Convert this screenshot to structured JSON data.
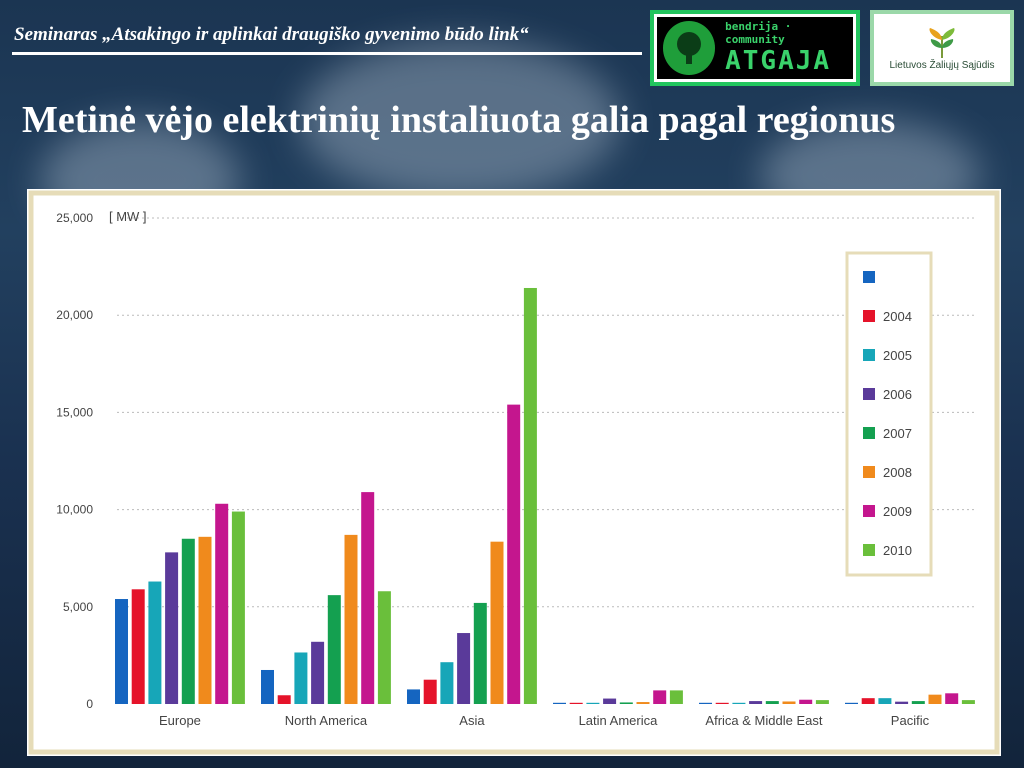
{
  "header": {
    "seminar_text": "Seminaras „Atsakingo ir aplinkai draugiško gyvenimo būdo link“"
  },
  "logos": {
    "atgaja_small": "bendrija · community",
    "atgaja_big": "ATGAJA",
    "lzs_text": "Lietuvos Žaliųjų Sąjūdis"
  },
  "slide": {
    "title": "Metinė vėjo elektrinių instaliuota galia pagal regionus"
  },
  "colors": {
    "frame": "#e6dcb8",
    "grid": "#bbbbbb",
    "axis_text": "#444444"
  },
  "chart_data": {
    "type": "bar",
    "unit_label": "[ MW ]",
    "categories": [
      "Europe",
      "North America",
      "Asia",
      "Latin America",
      "Africa & Middle East",
      "Pacific"
    ],
    "ylim": [
      0,
      25000
    ],
    "yticks": [
      "0",
      "5,000",
      "10,000",
      "15,000",
      "20,000",
      "25,000"
    ],
    "ytick_values": [
      0,
      5000,
      10000,
      15000,
      20000,
      25000
    ],
    "grid": true,
    "legend_position": "top-right",
    "series": [
      {
        "name": "",
        "color": "#1565c0",
        "values": [
          5400,
          1750,
          750,
          50,
          20,
          40
        ]
      },
      {
        "name": "2004",
        "color": "#e5132a",
        "values": [
          5900,
          450,
          1250,
          60,
          20,
          300
        ]
      },
      {
        "name": "2005",
        "color": "#17a6b8",
        "values": [
          6300,
          2650,
          2150,
          60,
          20,
          300
        ]
      },
      {
        "name": "2006",
        "color": "#5a3a9a",
        "values": [
          7800,
          3200,
          3650,
          280,
          150,
          120
        ]
      },
      {
        "name": "2007",
        "color": "#14a050",
        "values": [
          8500,
          5600,
          5200,
          80,
          150,
          150
        ]
      },
      {
        "name": "2008",
        "color": "#f08a1c",
        "values": [
          8600,
          8700,
          8350,
          100,
          130,
          480
        ]
      },
      {
        "name": "2009",
        "color": "#c4168e",
        "values": [
          10300,
          10900,
          15400,
          700,
          220,
          550
        ]
      },
      {
        "name": "2010",
        "color": "#6abf3b",
        "values": [
          9900,
          5800,
          21400,
          700,
          200,
          200
        ]
      }
    ]
  }
}
